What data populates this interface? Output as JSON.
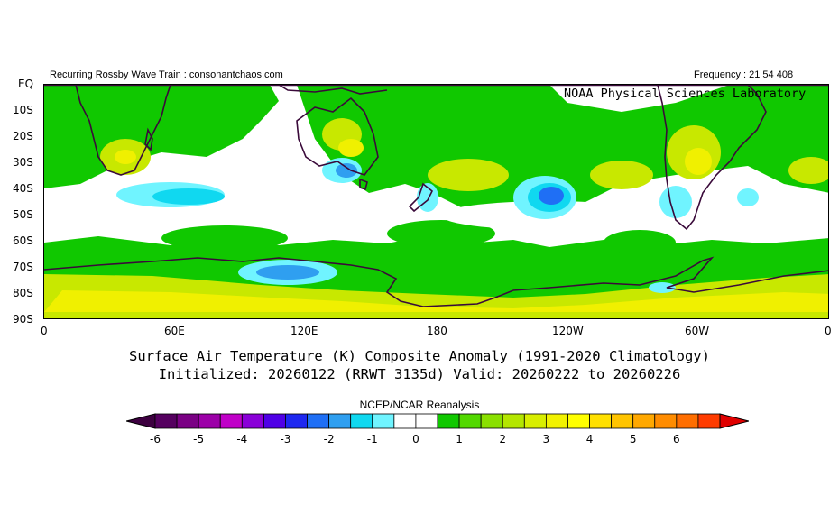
{
  "header": {
    "left": "Recurring Rossby Wave Train : consonantchaos.com",
    "right": "Frequency : 21 54 408",
    "lab": "NOAA Physical Sciences Laboratory"
  },
  "axes": {
    "y_ticks": [
      "EQ",
      "10S",
      "20S",
      "30S",
      "40S",
      "50S",
      "60S",
      "70S",
      "80S",
      "90S"
    ],
    "x_ticks": [
      "0",
      "60E",
      "120E",
      "180",
      "120W",
      "60W",
      "0"
    ]
  },
  "title": {
    "line1": "Surface Air Temperature (K) Composite Anomaly (1991-2020 Climatology)",
    "line2": "Initialized: 20260122 (RRWT 3135d) Valid: 20260222 to 20260226"
  },
  "colorbar": {
    "label": "NCEP/NCAR Reanalysis",
    "ticks": [
      "-6",
      "-5",
      "-4",
      "-3",
      "-2",
      "-1",
      "0",
      "1",
      "2",
      "3",
      "4",
      "5",
      "6"
    ],
    "colors": [
      "#3d0040",
      "#55005f",
      "#7a0084",
      "#9c00a8",
      "#c000c8",
      "#8a00d8",
      "#4f00e6",
      "#1e28f0",
      "#1f6ff5",
      "#2f9ff0",
      "#10d8f0",
      "#70f4ff",
      "#ffffff",
      "#ffffff",
      "#10c800",
      "#52d800",
      "#8ae000",
      "#b4e600",
      "#d8ee00",
      "#f2f200",
      "#ffff00",
      "#ffe000",
      "#ffc400",
      "#ffa800",
      "#ff8c00",
      "#ff6e00",
      "#ff3c00",
      "#e00000"
    ]
  },
  "map_colors": {
    "green": "#10c800",
    "light_green": "#7fe000",
    "yellow_green": "#c8e800",
    "yellow": "#f0f000",
    "light_blue": "#70f4ff",
    "cyan": "#10d8f0",
    "blue": "#2f9ff0",
    "dark_blue": "#1f6ff5",
    "coast": "#3a0a3a"
  }
}
